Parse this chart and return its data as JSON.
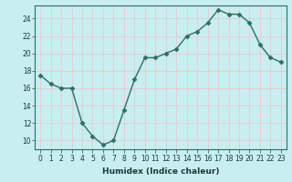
{
  "x": [
    0,
    1,
    2,
    3,
    4,
    5,
    6,
    7,
    8,
    9,
    10,
    11,
    12,
    13,
    14,
    15,
    16,
    17,
    18,
    19,
    20,
    21,
    22,
    23
  ],
  "y": [
    17.5,
    16.5,
    16.0,
    16.0,
    12.0,
    10.5,
    9.5,
    10.0,
    13.5,
    17.0,
    19.5,
    19.5,
    20.0,
    20.5,
    22.0,
    22.5,
    23.5,
    25.0,
    24.5,
    24.5,
    23.5,
    21.0,
    19.5,
    19.0
  ],
  "xlabel": "Humidex (Indice chaleur)",
  "xlim": [
    -0.5,
    23.5
  ],
  "ylim": [
    9,
    25.5
  ],
  "yticks": [
    10,
    12,
    14,
    16,
    18,
    20,
    22,
    24
  ],
  "xticks": [
    0,
    1,
    2,
    3,
    4,
    5,
    6,
    7,
    8,
    9,
    10,
    11,
    12,
    13,
    14,
    15,
    16,
    17,
    18,
    19,
    20,
    21,
    22,
    23
  ],
  "line_color": "#2d6e63",
  "marker": "D",
  "marker_size": 2.5,
  "bg_color": "#c8eef0",
  "grid_color": "#e8c8d0",
  "line_width": 1.0,
  "spine_color": "#2d6e63",
  "tick_color": "#2d6e63",
  "label_color": "#1a3a3a",
  "xlabel_fontsize": 6.5,
  "tick_fontsize": 5.5
}
